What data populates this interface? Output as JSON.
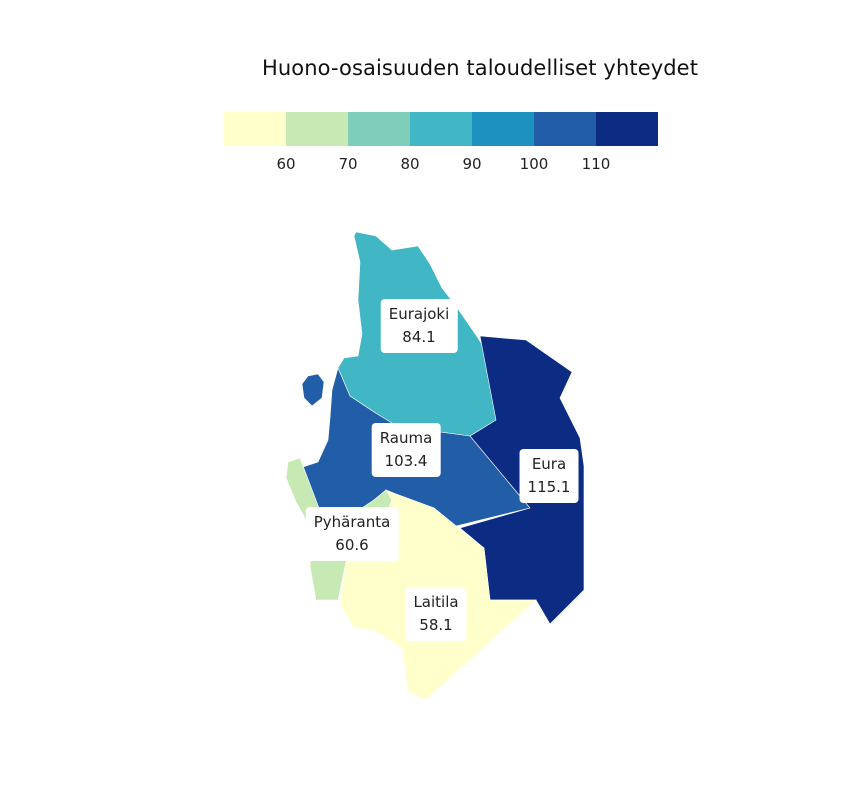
{
  "title": "Huono-osaisuuden taloudelliset yhteydet",
  "legend": {
    "colors": [
      "#ffffcc",
      "#c7e9b4",
      "#7fcdbb",
      "#41b6c4",
      "#1d91c0",
      "#225ea8",
      "#0c2c84"
    ],
    "ticks": [
      "60",
      "70",
      "80",
      "90",
      "100",
      "110"
    ]
  },
  "regions": [
    {
      "name": "Eurajoki",
      "value": "84.1",
      "color": "#41b6c4"
    },
    {
      "name": "Rauma",
      "value": "103.4",
      "color": "#225ea8"
    },
    {
      "name": "Eura",
      "value": "115.1",
      "color": "#0c2c84"
    },
    {
      "name": "Pyhäranta",
      "value": "60.6",
      "color": "#c7e9b4"
    },
    {
      "name": "Laitila",
      "value": "58.1",
      "color": "#ffffcc"
    }
  ]
}
